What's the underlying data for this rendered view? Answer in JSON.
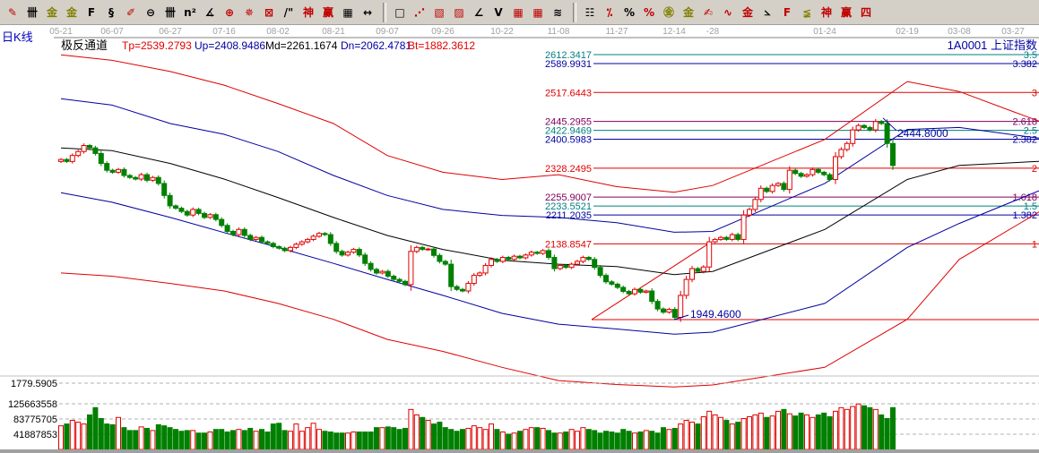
{
  "toolbar": {
    "groups": [
      [
        {
          "icon": "pen-icon",
          "glyph": "✎",
          "color": "#c00000"
        },
        {
          "icon": "parallel-lines-icon",
          "glyph": "卌",
          "color": "#000"
        },
        {
          "icon": "gold-split-icon",
          "glyph": "金",
          "color": "#808000"
        },
        {
          "icon": "gold-split-2-icon",
          "glyph": "金",
          "color": "#808000"
        },
        {
          "icon": "fibonacci-icon",
          "glyph": "F",
          "color": "#000"
        },
        {
          "icon": "spiral-icon",
          "glyph": "§",
          "color": "#000"
        },
        {
          "icon": "pen-marker-icon",
          "glyph": "✐",
          "color": "#c00000"
        },
        {
          "icon": "circle-cycle-icon",
          "glyph": "⊖",
          "color": "#000"
        },
        {
          "icon": "cycle-lines-icon",
          "glyph": "卌",
          "color": "#000"
        },
        {
          "icon": "square-lines-icon",
          "glyph": "n²",
          "color": "#000"
        },
        {
          "icon": "angle-icon",
          "glyph": "∡",
          "color": "#000"
        },
        {
          "icon": "target-icon",
          "glyph": "⊕",
          "color": "#c00000"
        },
        {
          "icon": "radar-icon",
          "glyph": "✵",
          "color": "#c00000"
        },
        {
          "icon": "box-target-icon",
          "glyph": "⊠",
          "color": "#c00000"
        },
        {
          "icon": "slash-marks-icon",
          "glyph": "/\"",
          "color": "#000"
        },
        {
          "icon": "shen-icon",
          "glyph": "神",
          "color": "#c00000"
        },
        {
          "icon": "ying-icon",
          "glyph": "赢",
          "color": "#c00000"
        },
        {
          "icon": "grid-scale-icon",
          "glyph": "▦",
          "color": "#000"
        },
        {
          "icon": "width-arrows-icon",
          "glyph": "↔",
          "color": "#000"
        }
      ],
      [
        {
          "icon": "rectangle-icon",
          "glyph": "□",
          "color": "#000"
        },
        {
          "icon": "fan-lines-icon",
          "glyph": "⋰",
          "color": "#c00000"
        },
        {
          "icon": "fan-box-icon",
          "glyph": "▧",
          "color": "#c00000"
        },
        {
          "icon": "fan-box-2-icon",
          "glyph": "▨",
          "color": "#c00000"
        },
        {
          "icon": "angle-fan-icon",
          "glyph": "∠",
          "color": "#000"
        },
        {
          "icon": "v-line-icon",
          "glyph": "V",
          "color": "#000"
        },
        {
          "icon": "grid-icon",
          "glyph": "▦",
          "color": "#c00000"
        },
        {
          "icon": "grid-2-icon",
          "glyph": "▦",
          "color": "#c00000"
        },
        {
          "icon": "hatch-icon",
          "glyph": "≋",
          "color": "#000"
        }
      ],
      [
        {
          "icon": "ruler-icon",
          "glyph": "☷",
          "color": "#000"
        },
        {
          "icon": "percent-slash-icon",
          "glyph": "⁒",
          "color": "#c00000"
        },
        {
          "icon": "percent-icon",
          "glyph": "%",
          "color": "#000"
        },
        {
          "icon": "percent-lines-icon",
          "glyph": "%",
          "color": "#c00000"
        },
        {
          "icon": "gold-coin-icon",
          "glyph": "㊎",
          "color": "#808000"
        },
        {
          "icon": "gold-lines-icon",
          "glyph": "金",
          "color": "#808000"
        },
        {
          "icon": "marker-icon",
          "glyph": "✍",
          "color": "#c00000"
        },
        {
          "icon": "wave-icon",
          "glyph": "∿",
          "color": "#c00000"
        },
        {
          "icon": "gold-box-icon",
          "glyph": "金",
          "color": "#c00000"
        },
        {
          "icon": "fan-j-icon",
          "glyph": "⦣",
          "color": "#000"
        },
        {
          "icon": "fan-f-icon",
          "glyph": "F",
          "color": "#c00000"
        },
        {
          "icon": "fan-gold-icon",
          "glyph": "≨",
          "color": "#808000"
        },
        {
          "icon": "fan-shen-icon",
          "glyph": "神",
          "color": "#c00000"
        },
        {
          "icon": "fan-ying-icon",
          "glyph": "赢",
          "color": "#c00000"
        },
        {
          "icon": "fan-four-icon",
          "glyph": "四",
          "color": "#c00000"
        }
      ]
    ]
  },
  "period_label": "日K线",
  "indicator": {
    "name": "极反通道",
    "tp": "Tp=2539.2793",
    "up": "Up=2408.9486",
    "md": "Md=2261.1674",
    "dn": "Dn=2062.4781",
    "bt": "Bt=1882.3612"
  },
  "security": "1A0001  上证指数",
  "colors": {
    "up": "#e00000",
    "down": "#008000",
    "tp": "#e00000",
    "upper": "#0000a0",
    "mid": "#000000",
    "lower": "#0000a0",
    "bt": "#e00000"
  },
  "chart_data": {
    "type": "candlestick",
    "x_ticks": [
      "05-21",
      "06-07",
      "06-27",
      "07-16",
      "08-02",
      "08-21",
      "09-07",
      "09-26",
      "10-22",
      "11-08",
      "11-27",
      "12-14",
      "-28",
      "01-24",
      "02-19",
      "03-08",
      "03-27"
    ],
    "ylim": [
      1779.5905,
      2612.3417
    ],
    "closes": [
      2350,
      2345,
      2360,
      2370,
      2385,
      2379,
      2365,
      2340,
      2323,
      2318,
      2325,
      2310,
      2305,
      2301,
      2312,
      2298,
      2305,
      2290,
      2260,
      2234,
      2228,
      2220,
      2211,
      2225,
      2215,
      2205,
      2212,
      2200,
      2185,
      2170,
      2162,
      2175,
      2160,
      2150,
      2155,
      2144,
      2140,
      2132,
      2128,
      2122,
      2130,
      2138,
      2144,
      2150,
      2158,
      2165,
      2162,
      2140,
      2120,
      2111,
      2118,
      2125,
      2111,
      2090,
      2075,
      2066,
      2070,
      2058,
      2050,
      2045,
      2037,
      2120,
      2130,
      2125,
      2126,
      2110,
      2095,
      2088,
      2032,
      2025,
      2021,
      2040,
      2060,
      2066,
      2085,
      2100,
      2095,
      2105,
      2100,
      2108,
      2104,
      2111,
      2118,
      2115,
      2122,
      2105,
      2077,
      2085,
      2080,
      2088,
      2095,
      2105,
      2100,
      2080,
      2060,
      2044,
      2038,
      2030,
      2020,
      2014,
      2025,
      2018,
      2021,
      1995,
      1976,
      1968,
      1975,
      1955,
      2010,
      2050,
      2077,
      2070,
      2081,
      2144,
      2150,
      2155,
      2150,
      2162,
      2150,
      2211,
      2225,
      2250,
      2278,
      2270,
      2285,
      2290,
      2275,
      2323,
      2315,
      2308,
      2312,
      2325,
      2318,
      2312,
      2300,
      2357,
      2375,
      2390,
      2424,
      2435,
      2430,
      2424,
      2445,
      2440,
      2390,
      2335
    ],
    "volumes": [
      65000000,
      70000000,
      80000000,
      75000000,
      70000000,
      95000000,
      115000000,
      85000000,
      70000000,
      68000000,
      88000000,
      60000000,
      52000000,
      52000000,
      62000000,
      58000000,
      52000000,
      68000000,
      65000000,
      60000000,
      55000000,
      50000000,
      52000000,
      52000000,
      45000000,
      45000000,
      48000000,
      55000000,
      55000000,
      48000000,
      52000000,
      55000000,
      52000000,
      58000000,
      50000000,
      55000000,
      48000000,
      70000000,
      72000000,
      52000000,
      50000000,
      70000000,
      50000000,
      60000000,
      72000000,
      55000000,
      50000000,
      48000000,
      45000000,
      45000000,
      45000000,
      48000000,
      48000000,
      48000000,
      48000000,
      60000000,
      60000000,
      62000000,
      60000000,
      55000000,
      58000000,
      110000000,
      95000000,
      88000000,
      80000000,
      70000000,
      75000000,
      60000000,
      55000000,
      50000000,
      55000000,
      58000000,
      65000000,
      60000000,
      55000000,
      70000000,
      55000000,
      48000000,
      42000000,
      45000000,
      50000000,
      55000000,
      60000000,
      60000000,
      58000000,
      52000000,
      45000000,
      45000000,
      48000000,
      55000000,
      50000000,
      60000000,
      55000000,
      52000000,
      45000000,
      50000000,
      48000000,
      45000000,
      55000000,
      50000000,
      45000000,
      48000000,
      52000000,
      50000000,
      45000000,
      60000000,
      55000000,
      58000000,
      70000000,
      80000000,
      75000000,
      70000000,
      90000000,
      105000000,
      95000000,
      88000000,
      80000000,
      70000000,
      75000000,
      85000000,
      90000000,
      95000000,
      100000000,
      88000000,
      92000000,
      105000000,
      110000000,
      98000000,
      92000000,
      100000000,
      95000000,
      88000000,
      95000000,
      100000000,
      90000000,
      105000000,
      115000000,
      110000000,
      118000000,
      125000000,
      120000000,
      115000000,
      110000000,
      95000000,
      85000000,
      115000000
    ],
    "volume_ticks": [
      "1779.5905",
      "125663558",
      "83775705",
      "41887853"
    ],
    "bands": {
      "tp": [
        2612,
        2598,
        2570,
        2536,
        2490,
        2440,
        2360,
        2318,
        2300,
        2312,
        2282,
        2268,
        2285,
        2400,
        2545,
        2520,
        2470
      ],
      "upper": [
        2502,
        2486,
        2440,
        2413,
        2370,
        2310,
        2260,
        2225,
        2210,
        2205,
        2192,
        2168,
        2170,
        2290,
        2425,
        2430,
        2412
      ],
      "mid": [
        2379,
        2372,
        2340,
        2301,
        2255,
        2205,
        2160,
        2125,
        2098,
        2088,
        2082,
        2062,
        2070,
        2175,
        2300,
        2335,
        2342
      ],
      "lower": [
        2267,
        2243,
        2205,
        2167,
        2130,
        2090,
        2050,
        2010,
        1965,
        1938,
        1926,
        1913,
        1918,
        1990,
        2130,
        2190,
        2245
      ],
      "bt": [
        2066,
        2058,
        2040,
        2021,
        1990,
        1950,
        1900,
        1870,
        1830,
        1797,
        1787,
        1781,
        1786,
        1830,
        1950,
        2100,
        2180
      ]
    },
    "fib_levels": [
      {
        "price": "2612.3417",
        "ratio": "3.5",
        "color": "#008080"
      },
      {
        "price": "2589.9931",
        "ratio": "3.382",
        "color": "#0000a0"
      },
      {
        "price": "2517.6443",
        "ratio": "3",
        "color": "#e00000"
      },
      {
        "price": "2445.2955",
        "ratio": "2.618",
        "color": "#800060"
      },
      {
        "price": "2422.9469",
        "ratio": "2.5",
        "color": "#008080"
      },
      {
        "price": "2400.5983",
        "ratio": "2.382",
        "color": "#0000a0"
      },
      {
        "price": "2328.2495",
        "ratio": "2",
        "color": "#e00000"
      },
      {
        "price": "2255.9007",
        "ratio": "1.618",
        "color": "#800060"
      },
      {
        "price": "2233.5521",
        "ratio": "1.5",
        "color": "#008080"
      },
      {
        "price": "2211.2035",
        "ratio": "1.382",
        "color": "#0000a0"
      },
      {
        "price": "2138.8547",
        "ratio": "1",
        "color": "#e00000"
      }
    ],
    "low_mark": "1949.4600",
    "high_mark": "2444.8000"
  }
}
